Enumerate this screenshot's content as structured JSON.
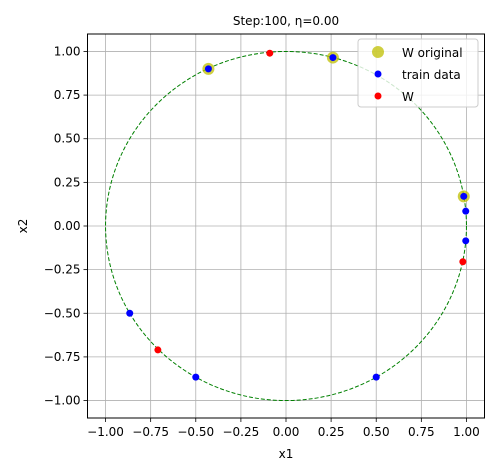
{
  "chart_data": {
    "type": "scatter",
    "title": "Step:100, η=0.00",
    "xlabel": "x1",
    "ylabel": "x2",
    "xlim": [
      -1.1,
      1.1
    ],
    "ylim": [
      -1.1,
      1.1
    ],
    "xticks": [
      -1.0,
      -0.75,
      -0.5,
      -0.25,
      0.0,
      0.25,
      0.5,
      0.75,
      1.0
    ],
    "yticks": [
      -1.0,
      -0.75,
      -0.5,
      -0.25,
      0.0,
      0.25,
      0.5,
      0.75,
      1.0
    ],
    "xtick_labels": [
      "−1.00",
      "−0.75",
      "−0.50",
      "−0.25",
      "0.00",
      "0.25",
      "0.50",
      "0.75",
      "1.00"
    ],
    "ytick_labels": [
      "−1.00",
      "−0.75",
      "−0.50",
      "−0.25",
      "0.00",
      "0.25",
      "0.50",
      "0.75",
      "1.00"
    ],
    "grid": true,
    "legend_position": "top-right",
    "unit_circle": {
      "radius": 1.0,
      "color": "#008000",
      "style": "dashed"
    },
    "series": [
      {
        "name": "W original",
        "color": "#bfbf00",
        "marker": "large-circle",
        "points": [
          {
            "x": -0.43,
            "y": 0.9
          },
          {
            "x": 0.26,
            "y": 0.965
          },
          {
            "x": 0.985,
            "y": 0.17
          }
        ]
      },
      {
        "name": "train data",
        "color": "#0000ff",
        "marker": "small-circle",
        "points": [
          {
            "x": -0.43,
            "y": 0.9
          },
          {
            "x": 0.26,
            "y": 0.965
          },
          {
            "x": 0.985,
            "y": 0.17
          },
          {
            "x": 0.996,
            "y": 0.085
          },
          {
            "x": 0.996,
            "y": -0.085
          },
          {
            "x": -0.866,
            "y": -0.5
          },
          {
            "x": -0.5,
            "y": -0.866
          },
          {
            "x": 0.5,
            "y": -0.866
          }
        ]
      },
      {
        "name": "W",
        "color": "#ff0000",
        "marker": "small-circle",
        "points": [
          {
            "x": -0.09,
            "y": 0.99
          },
          {
            "x": 0.98,
            "y": -0.205
          },
          {
            "x": -0.71,
            "y": -0.71
          }
        ]
      }
    ]
  }
}
